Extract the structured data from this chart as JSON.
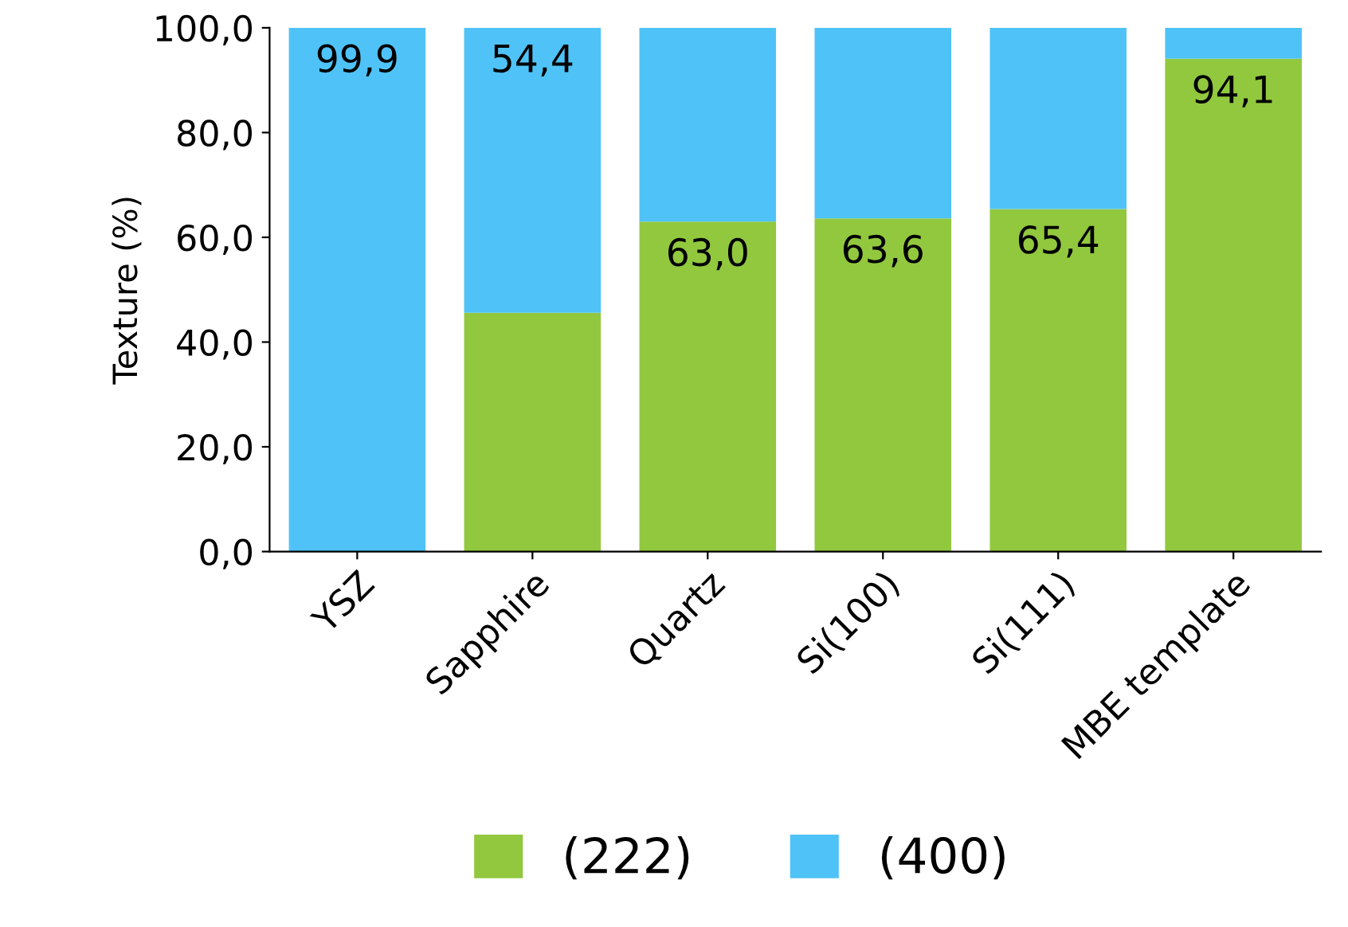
{
  "chart_data": {
    "type": "bar",
    "stacked": true,
    "ylabel": "Texture (%)",
    "categories": [
      "YSZ",
      "Sapphire",
      "Quartz",
      "Si(100)",
      "Si(111)",
      "MBE template"
    ],
    "series": [
      {
        "name": "(222)",
        "color": "#92c83e",
        "values": [
          0.1,
          45.6,
          63.0,
          63.6,
          65.4,
          94.1
        ],
        "value_labels": [
          null,
          null,
          "63,0",
          "63,6",
          "65,4",
          "94,1"
        ]
      },
      {
        "name": "(400)",
        "color": "#4fc3f7",
        "values": [
          99.9,
          54.4,
          37.0,
          36.4,
          34.6,
          5.9
        ],
        "value_labels": [
          "99,9",
          "54,4",
          null,
          null,
          null,
          null
        ]
      }
    ],
    "ylim": [
      0,
      100
    ],
    "yticks": [
      {
        "value": 0,
        "label": "0,0"
      },
      {
        "value": 20,
        "label": "20,0"
      },
      {
        "value": 40,
        "label": "40,0"
      },
      {
        "value": 60,
        "label": "60,0"
      },
      {
        "value": 80,
        "label": "80,0"
      },
      {
        "value": 100,
        "label": "100,0"
      }
    ],
    "legend": "bottom",
    "grid": false
  }
}
